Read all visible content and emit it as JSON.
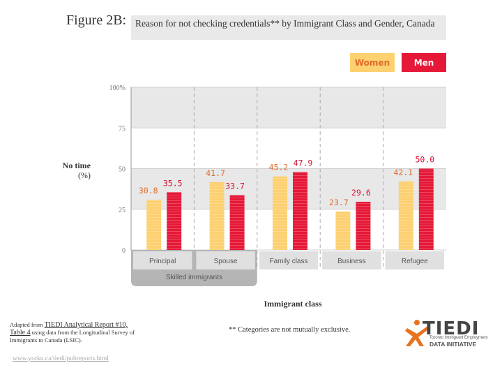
{
  "figure": {
    "label": "Figure 2B:",
    "title": "Reason for not checking credentials** by Immigrant Class and Gender, Canada"
  },
  "legend": {
    "women": "Women",
    "men": "Men"
  },
  "colors": {
    "women": "#fdd070",
    "men": "#e51937",
    "women_label": "#e06a2c",
    "men_label": "#d6112f",
    "group_bg": "#b5b5b5",
    "band": "#e8e8e8"
  },
  "chart_data": {
    "type": "bar",
    "title": "Reason for not checking credentials** by Immigrant Class and Gender, Canada",
    "xlabel": "Immigrant class",
    "ylabel": "No time",
    "ylabel_unit": "(%)",
    "categories": [
      "Principal",
      "Spouse",
      "Family class",
      "Business",
      "Refugee"
    ],
    "group_label": "Skilled immigrants",
    "series": [
      {
        "name": "Women",
        "values": [
          30.8,
          41.7,
          45.2,
          23.7,
          42.1
        ]
      },
      {
        "name": "Men",
        "values": [
          35.5,
          33.7,
          47.9,
          29.6,
          50.0
        ]
      }
    ],
    "ylim": [
      0,
      100
    ],
    "yticks": [
      "0",
      "25",
      "50",
      "75",
      "100%"
    ],
    "grid": true
  },
  "axis": {
    "xlabel": "Immigrant class"
  },
  "source": {
    "prefix": "Adapted from ",
    "link": "TIEDI Analytical Report #10,",
    "table": "Table 4",
    "rest": " using data from the Longitudinal Survey of Immigrants to Canada (LSIC)."
  },
  "url": "www.yorku.ca/tiedi/pubreports.html",
  "note": "** Categories are not mutually exclusive.",
  "logo": {
    "word": "TIEDI",
    "line1": "Toronto Immigrant Employment",
    "line2": "DATA INITIATIVE"
  }
}
